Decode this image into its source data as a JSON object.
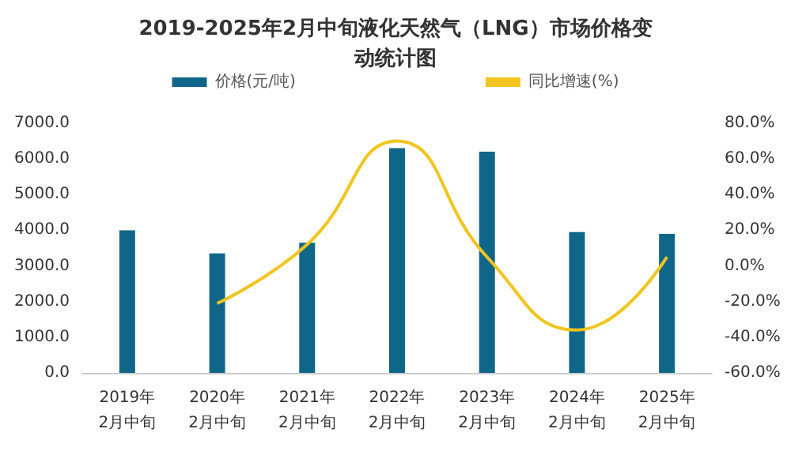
{
  "chart_data": {
    "type": "bar",
    "title": "2019-2025年2月中旬液化天然气（LNG）市场价格变动统计图",
    "categories": [
      "2019年\n2月中旬",
      "2020年\n2月中旬",
      "2021年\n2月中旬",
      "2022年\n2月中旬",
      "2023年\n2月中旬",
      "2024年\n2月中旬",
      "2025年\n2月中旬"
    ],
    "series": [
      {
        "name": "价格(元/吨)",
        "color": "#0f6689",
        "values": [
          4000,
          3350,
          3650,
          6300,
          6200,
          3950,
          3900
        ]
      },
      {
        "name": "同比增速(%)",
        "type": "line",
        "axis": "y2",
        "color": "#f2c41e",
        "values": [
          null,
          -21,
          12,
          70,
          5,
          -36,
          5
        ]
      }
    ],
    "ylim": [
      0,
      7000
    ],
    "yticks": [
      {
        "value": 0,
        "label": "0.0"
      },
      {
        "value": 1000,
        "label": "1000.0"
      },
      {
        "value": 2000,
        "label": "2000.0"
      },
      {
        "value": 3000,
        "label": "3000.0"
      },
      {
        "value": 4000,
        "label": "4000.0"
      },
      {
        "value": 5000,
        "label": "5000.0"
      },
      {
        "value": 6000,
        "label": "6000.0"
      },
      {
        "value": 7000,
        "label": "7000.0"
      }
    ],
    "y2lim": [
      -60,
      80
    ],
    "y2ticks": [
      {
        "value": -60,
        "label": "-60.0%"
      },
      {
        "value": -40,
        "label": "-40.0%"
      },
      {
        "value": -20,
        "label": "-20.0%"
      },
      {
        "value": 0,
        "label": "0.0%"
      },
      {
        "value": 20,
        "label": "20.0%"
      },
      {
        "value": 40,
        "label": "40.0%"
      },
      {
        "value": 60,
        "label": "60.0%"
      },
      {
        "value": 80,
        "label": "80.0%"
      }
    ],
    "grid": false,
    "legend": "top",
    "marker": "none"
  }
}
